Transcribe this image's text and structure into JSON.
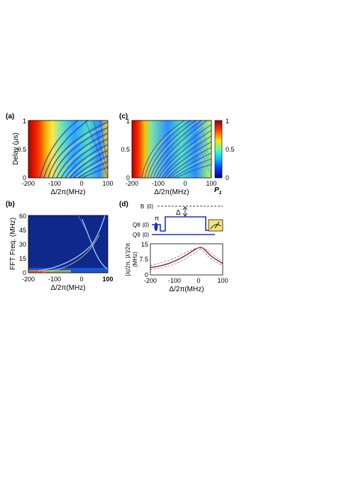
{
  "panels": {
    "a": {
      "label": "(a)",
      "ylabel": "Delay (μs)",
      "xlabel": "Δ/2π(MHz)",
      "xticks": [
        "-200",
        "-100",
        "0",
        "100"
      ],
      "yticks": [
        "0",
        "0.5",
        "1"
      ]
    },
    "c": {
      "label": "(c)",
      "xlabel": "Δ/2π(MHz)",
      "xticks": [
        "-200",
        "-100",
        "0",
        "100"
      ],
      "yticks": [
        "0",
        "0.5",
        "1"
      ]
    },
    "colorbar": {
      "ticks": [
        "1",
        "0.5",
        "0"
      ],
      "label": "P",
      "label_sub": "1"
    },
    "b": {
      "label": "(b)",
      "ylabel": "FFT Freq. (MHz)",
      "xlabel": "Δ/2π(MHz)",
      "xticks": [
        "-200",
        "-100",
        "0",
        "100"
      ],
      "yticks": [
        "0",
        "15",
        "30",
        "45",
        "60"
      ]
    },
    "d": {
      "label": "(d)",
      "pulse": {
        "level_b": "B",
        "level_q8": "Q8",
        "level_q9": "Q9",
        "ket": "|0⟩",
        "pi": "π",
        "delta": "Δ"
      },
      "plot": {
        "ylabel": "|λ|/2π, |λ'|/2π",
        "ylabel_unit": "(MHz)",
        "xlabel": "Δ/2π(MHz)",
        "xticks": [
          "-200",
          "-100",
          "0",
          "100"
        ],
        "yticks": [
          "0",
          "7.5",
          "15"
        ]
      }
    }
  },
  "colors": {
    "axis": "#000000",
    "pulse_line": "#1f2fc8",
    "readout_box": "#f5e27a",
    "curve_solid": "#8b1a2e",
    "curve_dashed_1": "#6b7bd0",
    "curve_dashed_2": "#d07b9b",
    "fft_background": "#10288c"
  },
  "chart_data": [
    {
      "type": "line",
      "panel": "d",
      "x": [
        -200,
        -150,
        -100,
        -50,
        0,
        20,
        50,
        100
      ],
      "series": [
        {
          "values": [
            3.5,
            4.5,
            6.5,
            9.5,
            13.5,
            13.0,
            9.0,
            5.5
          ]
        },
        {
          "values": [
            4.5,
            6.0,
            8.0,
            11.0,
            13.5,
            11.5,
            7.5,
            4.5
          ]
        },
        {
          "values": [
            2.5,
            3.5,
            5.0,
            8.0,
            12.0,
            13.5,
            10.5,
            6.5
          ]
        }
      ],
      "xlim": [
        -200,
        100
      ],
      "ylim": [
        0,
        15
      ]
    }
  ]
}
